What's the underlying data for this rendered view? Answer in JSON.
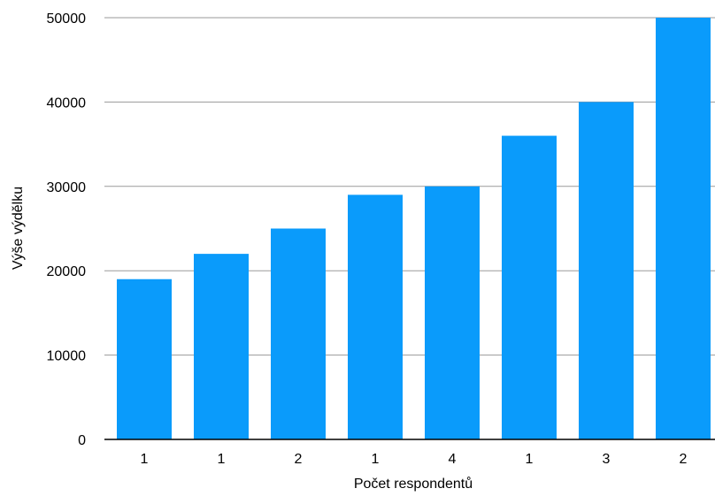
{
  "chart_data": {
    "type": "bar",
    "categories": [
      "1",
      "1",
      "2",
      "1",
      "4",
      "1",
      "3",
      "2"
    ],
    "values": [
      19000,
      22000,
      25000,
      29000,
      30000,
      36000,
      40000,
      50000
    ],
    "xlabel": "Počet respondentů",
    "ylabel": "Výše výdělku",
    "ylim": [
      0,
      50000
    ],
    "yticks": [
      "0",
      "10000",
      "20000",
      "30000",
      "40000",
      "50000"
    ],
    "grid": true,
    "bar_color": "#0A9BFB"
  }
}
